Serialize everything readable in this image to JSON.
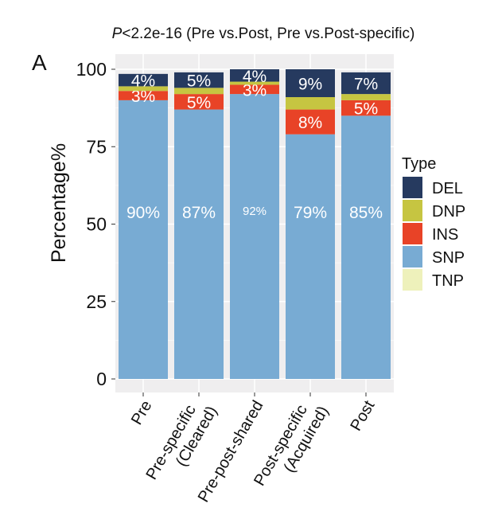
{
  "panel_letter": "A",
  "chart_data": {
    "type": "bar",
    "stacked": true,
    "title_italic": "P",
    "title": "<2.2e-16 (Pre vs.Post, Pre vs.Post-specific)",
    "xlabel": "",
    "ylabel": "Percentage%",
    "ylim": [
      0,
      100
    ],
    "yticks": [
      "0",
      "25",
      "50",
      "75",
      "100"
    ],
    "ytick_values": [
      0,
      25,
      50,
      75,
      100
    ],
    "grid": true,
    "legend_title": "Type",
    "legend_placement": "right",
    "categories": [
      [
        "Pre"
      ],
      [
        "Pre-specific",
        "(Cleared)"
      ],
      [
        "Pre-post-shared"
      ],
      [
        "Post-specific",
        "(Acquired)"
      ],
      [
        "Post"
      ]
    ],
    "series": [
      {
        "name": "SNP",
        "color": "#78abd3",
        "values": [
          90,
          87,
          92,
          79,
          85
        ],
        "labels": [
          "90%",
          "87%",
          "92%",
          "79%",
          "85%"
        ]
      },
      {
        "name": "INS",
        "color": "#e84327",
        "values": [
          3,
          5,
          3,
          8,
          5
        ],
        "labels": [
          "3%",
          "5%",
          "3%",
          "8%",
          "5%"
        ]
      },
      {
        "name": "DNP",
        "color": "#c6c541",
        "values": [
          1.5,
          2,
          1,
          4,
          2
        ],
        "labels": [
          "",
          "",
          "",
          "",
          ""
        ]
      },
      {
        "name": "DEL",
        "color": "#263a5f",
        "values": [
          4,
          5,
          4,
          9,
          7
        ],
        "labels": [
          "4%",
          "5%",
          "4%",
          "9%",
          "7%"
        ]
      },
      {
        "name": "TNP",
        "color": "#eef1bb",
        "values": [
          0,
          0,
          0,
          0,
          0
        ],
        "labels": [
          "",
          "",
          "",
          "",
          ""
        ]
      }
    ],
    "legend_order": [
      "DEL",
      "DNP",
      "INS",
      "SNP",
      "TNP"
    ]
  }
}
